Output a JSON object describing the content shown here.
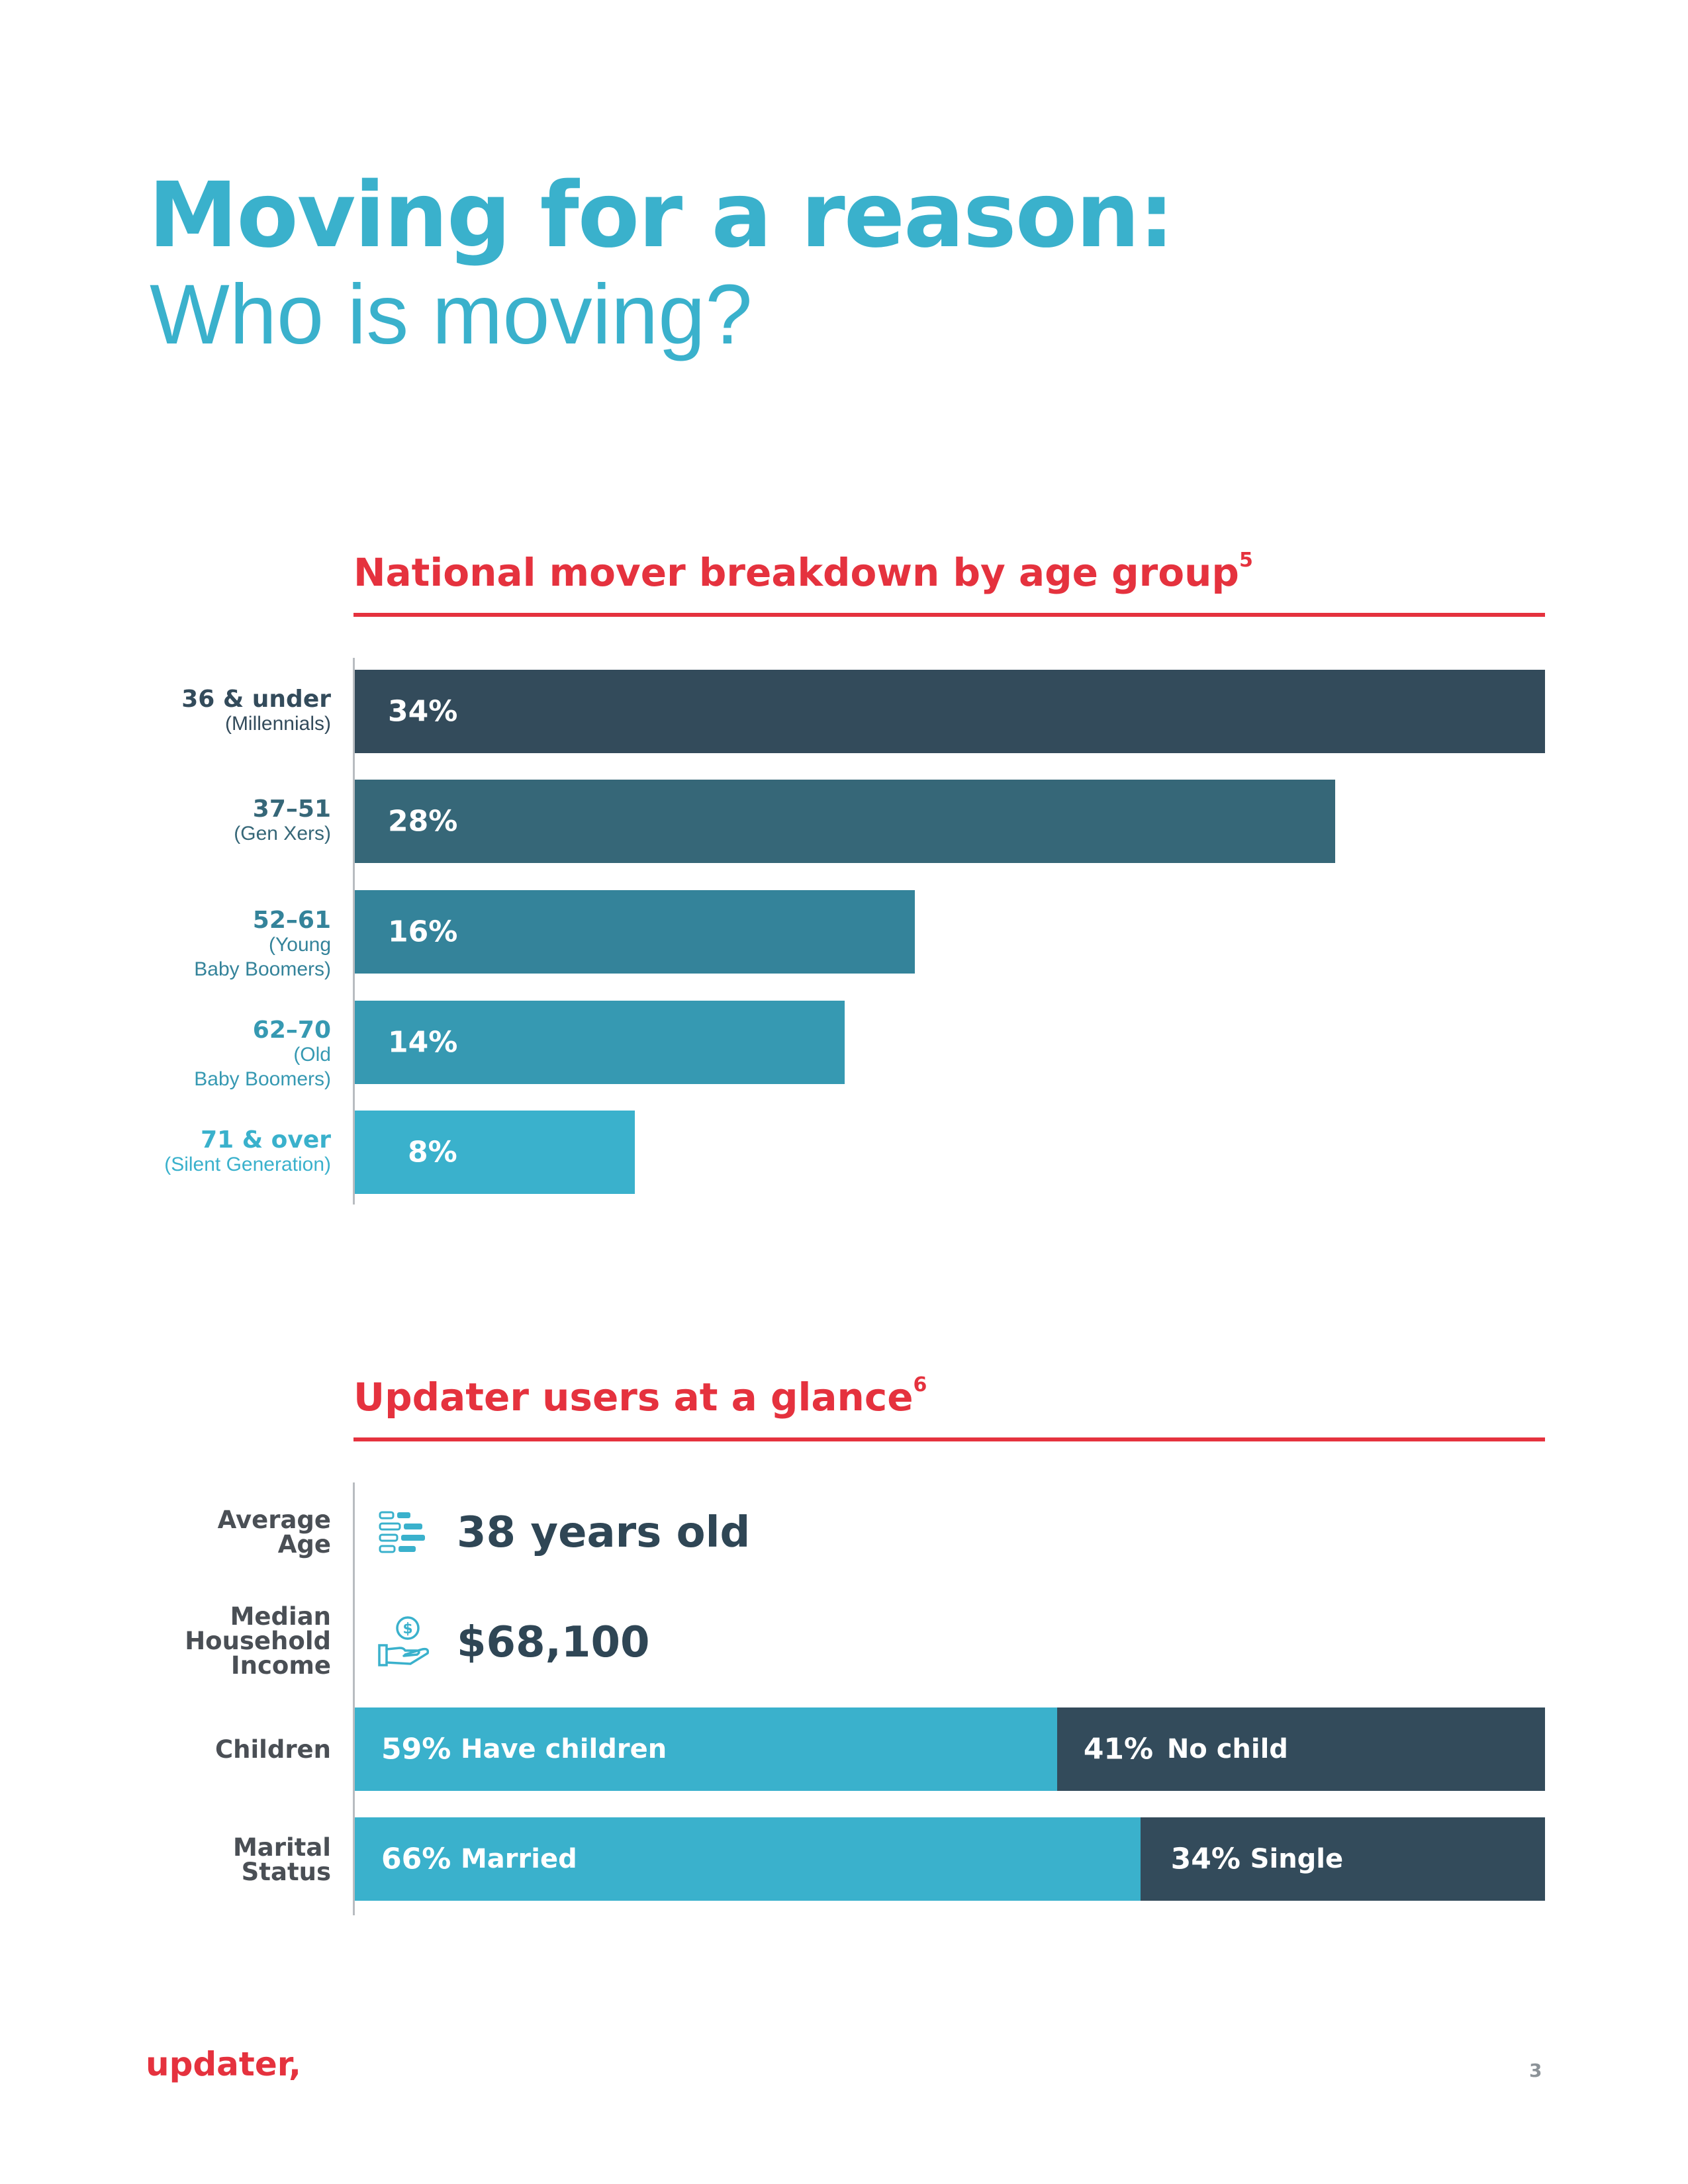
{
  "header": {
    "title": "Moving for a reason:",
    "subtitle": "Who is moving?"
  },
  "age_section": {
    "title": "National mover breakdown by age group",
    "footnote": "5"
  },
  "chart_data": {
    "type": "bar",
    "orientation": "horizontal",
    "title": "National mover breakdown by age group",
    "categories": [
      "36 & under",
      "37–51",
      "52–61",
      "62–70",
      "71 & over"
    ],
    "category_sublabels": [
      [
        "(Millennials)"
      ],
      [
        "(Gen Xers)"
      ],
      [
        "(Young",
        "Baby Boomers)"
      ],
      [
        "(Old",
        "Baby Boomers)"
      ],
      [
        "(Silent  Generation)"
      ]
    ],
    "values": [
      34,
      28,
      16,
      14,
      8
    ],
    "value_labels": [
      "34%",
      "28%",
      "16%",
      "14%",
      "8%"
    ],
    "colors": [
      "#334b5b",
      "#366778",
      "#34839a",
      "#3699b2",
      "#3ab1cc"
    ],
    "xlim": [
      0,
      34
    ],
    "grid": false,
    "legend": "none"
  },
  "glance_section": {
    "title": "Updater users at a glance",
    "footnote": "6",
    "average_age": {
      "label_line1": "Average",
      "label_line2": "Age",
      "value": "38 years old",
      "icon": "age-bars-icon"
    },
    "income": {
      "label_line1": "Median",
      "label_line2": "Household",
      "label_line3": "Income",
      "value": "$68,100",
      "icon": "money-hand-icon"
    },
    "children": {
      "label": "Children",
      "left": {
        "pct": "59%",
        "text": "Have children",
        "value": 59,
        "color": "#3ab1cc"
      },
      "right": {
        "pct": "41%",
        "text": "No child",
        "value": 41,
        "color": "#334b5b"
      }
    },
    "marital": {
      "label_line1": "Marital",
      "label_line2": "Status",
      "left": {
        "pct": "66%",
        "text": "Married",
        "value": 66,
        "color": "#3ab1cc"
      },
      "right": {
        "pct": "34%",
        "text": "Single",
        "value": 34,
        "color": "#334b5b"
      }
    }
  },
  "footer": {
    "logo": "updater,",
    "page": "3"
  }
}
